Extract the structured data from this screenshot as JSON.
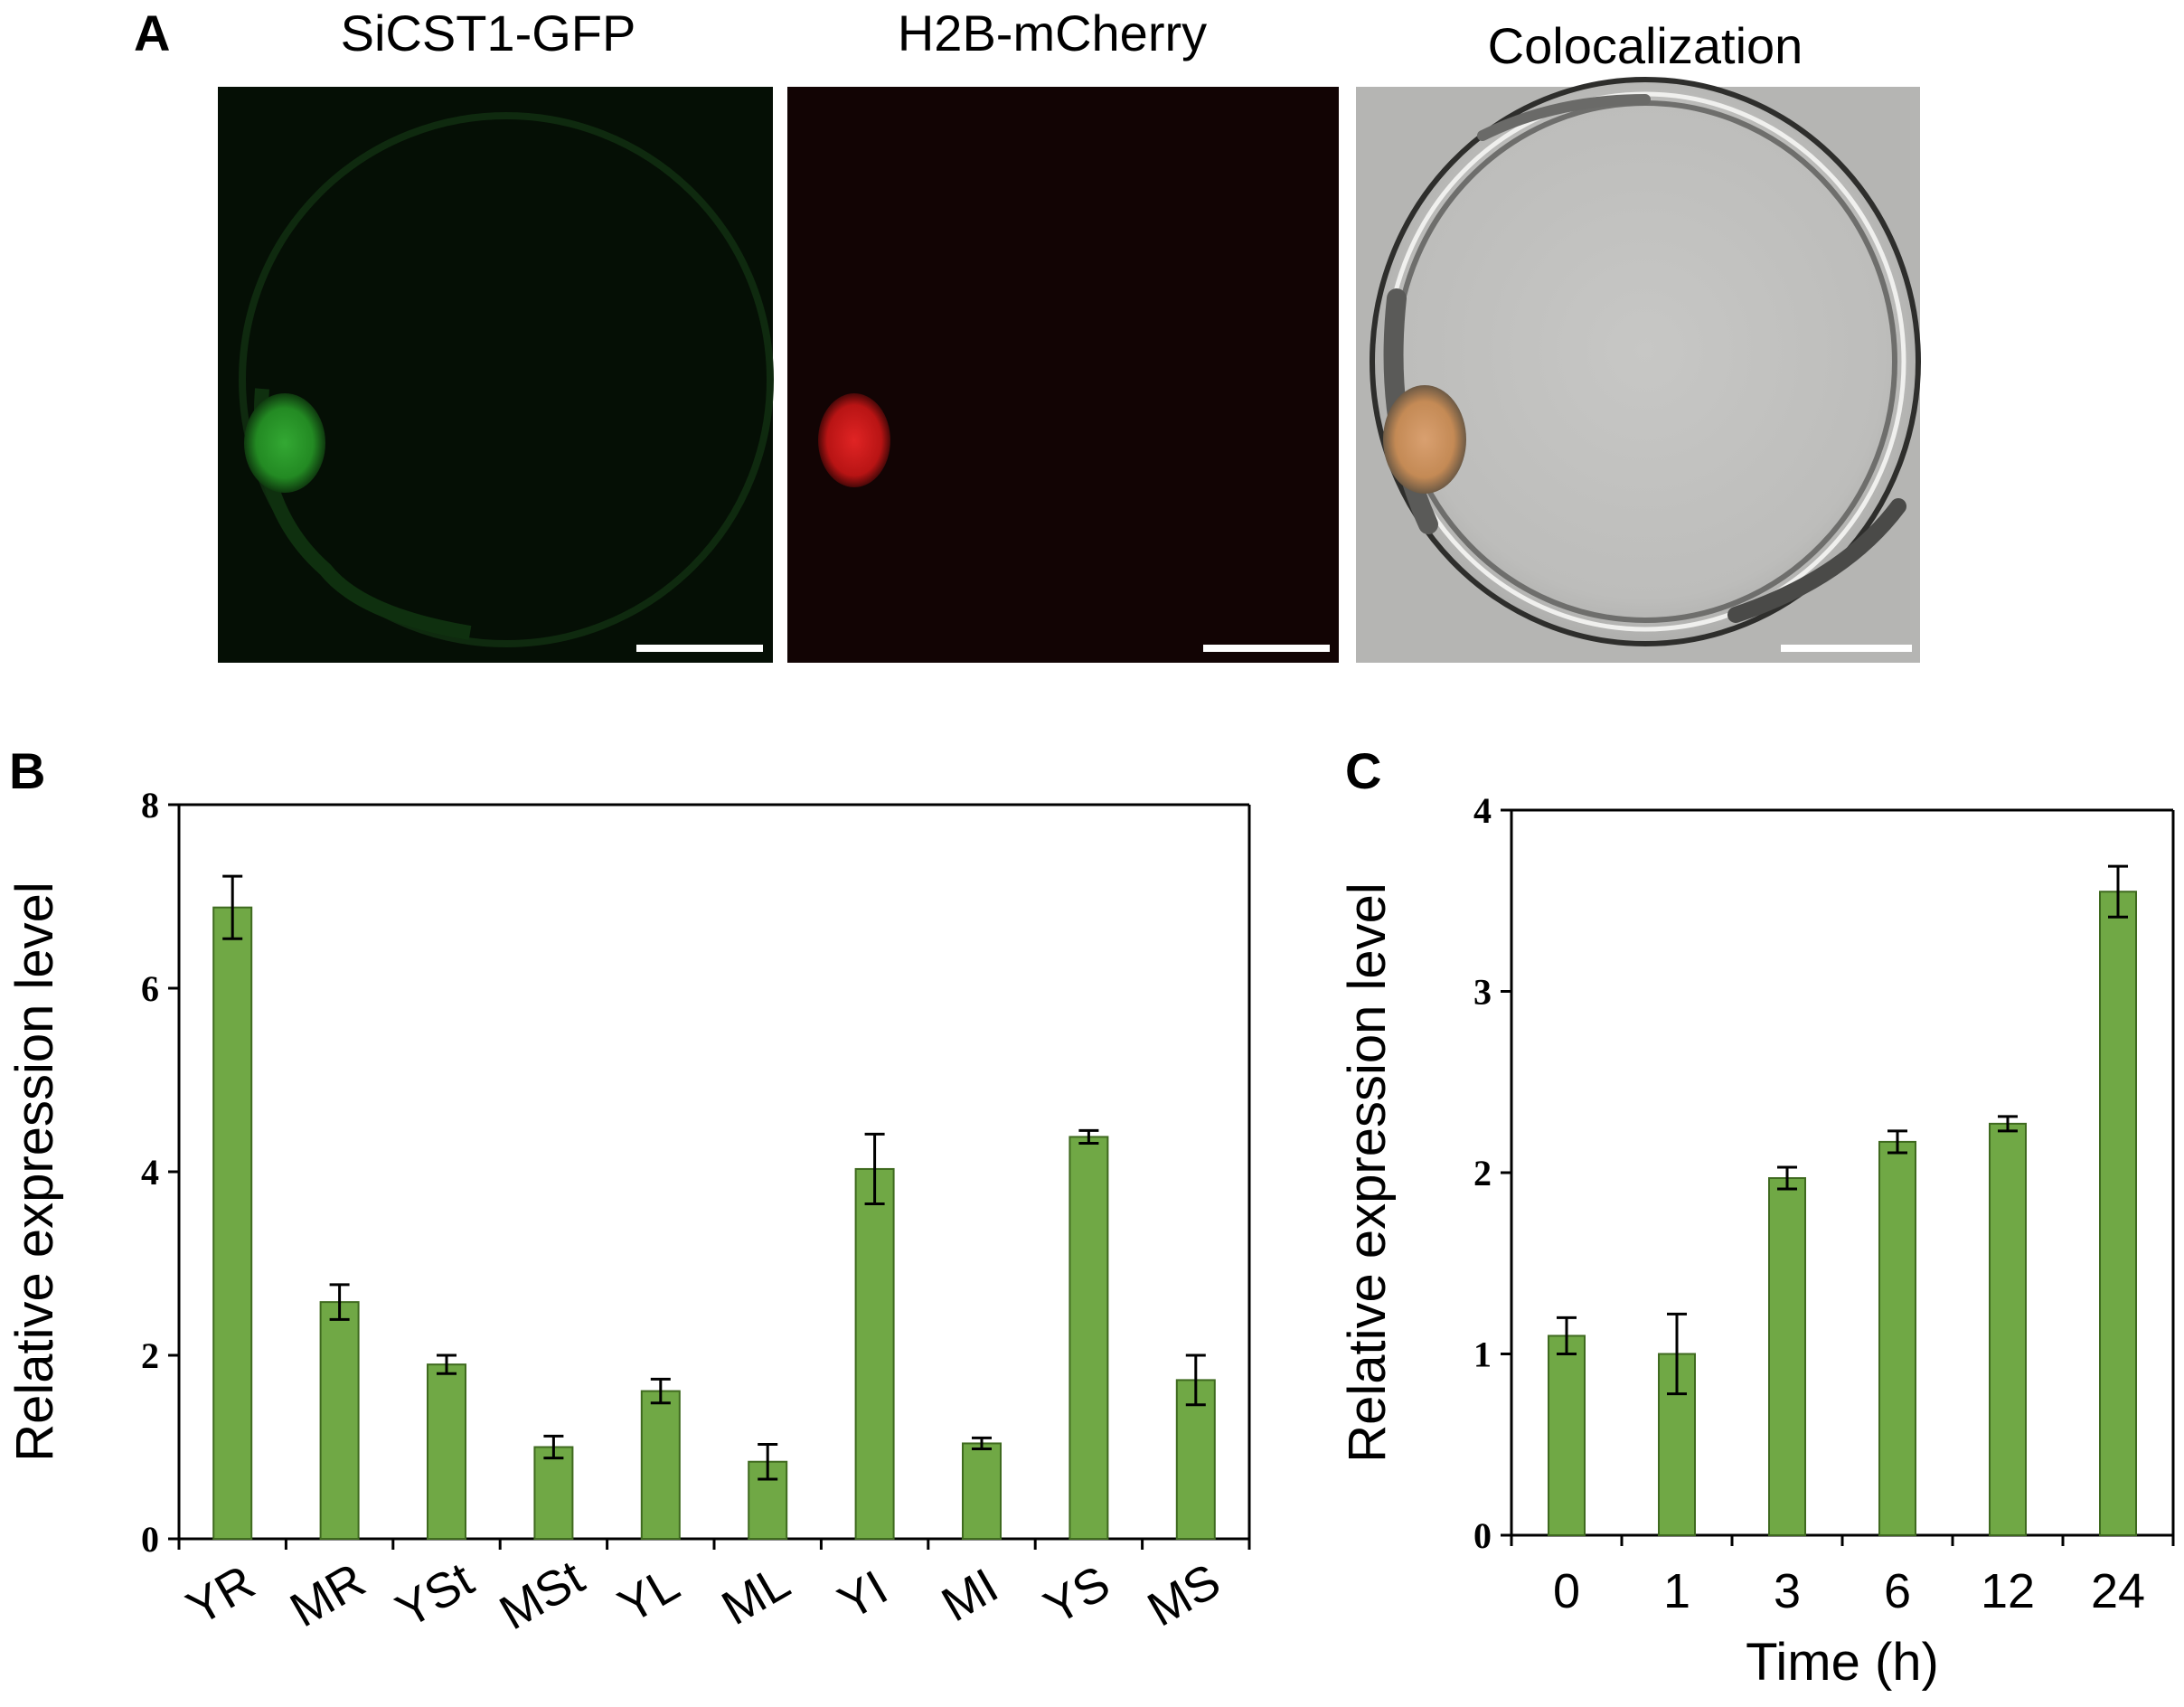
{
  "colors": {
    "bar_fill": "#70a845",
    "bar_edge": "#3f6a1f",
    "gfp_nucleus": "#2f9e2f",
    "mcherry_nucleus": "#d01e1e",
    "gfp_background": "#050f05",
    "mcherry_background": "#120404",
    "brightfield_background": "#b5b5b3",
    "scale_bar": "#ffffff"
  },
  "panel_a": {
    "letter": "A",
    "images": [
      {
        "title": "SiCST1-GFP",
        "channel": "green"
      },
      {
        "title": "H2B-mCherry",
        "channel": "red"
      },
      {
        "title": "Colocalization",
        "channel": "brightfield"
      }
    ]
  },
  "chart_data": [
    {
      "panel": "B",
      "type": "bar",
      "categories": [
        "YR",
        "MR",
        "YSt",
        "MSt",
        "YL",
        "ML",
        "YI",
        "MI",
        "YS",
        "MS"
      ],
      "values": [
        6.88,
        2.58,
        1.9,
        1.0,
        1.61,
        0.84,
        4.03,
        1.04,
        4.38,
        1.73
      ],
      "errors": [
        0.34,
        0.19,
        0.1,
        0.12,
        0.13,
        0.19,
        0.38,
        0.06,
        0.07,
        0.27
      ],
      "ylabel": "Relative expression level",
      "xlabel": "",
      "ylim": [
        0,
        8
      ],
      "yticks": [
        0,
        2,
        4,
        6,
        8
      ],
      "grid": false
    },
    {
      "panel": "C",
      "type": "bar",
      "categories": [
        "0",
        "1",
        "3",
        "6",
        "12",
        "24"
      ],
      "values": [
        1.1,
        1.0,
        1.97,
        2.17,
        2.27,
        3.55
      ],
      "errors": [
        0.1,
        0.22,
        0.06,
        0.06,
        0.04,
        0.14
      ],
      "ylabel": "Relative expression level",
      "xlabel": "Time (h)",
      "ylim": [
        0,
        4
      ],
      "yticks": [
        0,
        1,
        2,
        3,
        4
      ],
      "grid": false
    }
  ]
}
